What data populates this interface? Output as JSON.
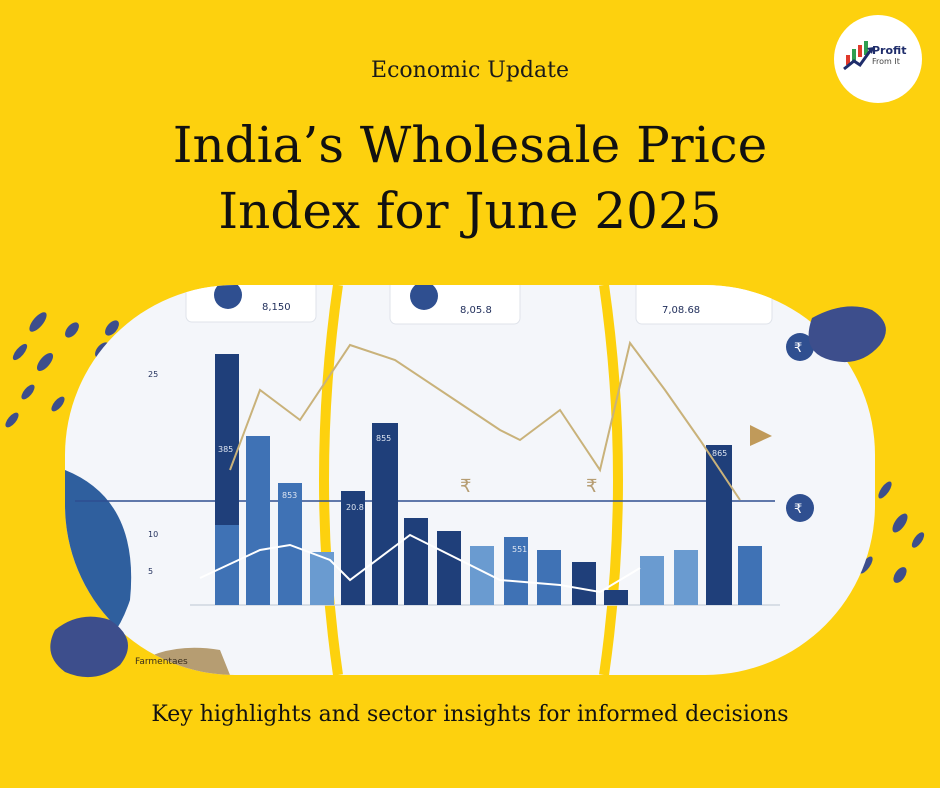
{
  "kicker": "Economic Update",
  "title": {
    "line1": "India’s Wholesale Price",
    "line2": "Index for June 2025"
  },
  "subtitle": "Key highlights and sector insights for informed decisions",
  "brand": {
    "line1": "Profit",
    "line2": "From It"
  },
  "cards": [
    {
      "value": "8,150"
    },
    {
      "value": "8,05.8"
    },
    {
      "value": "7,08.68"
    }
  ],
  "y_ticks": [
    "25",
    "10",
    "5"
  ],
  "bar_labels": [
    "385",
    "20.8",
    "855",
    "853",
    "551",
    "865"
  ],
  "rupee_symbol": "₹",
  "corner_label": "Farmentaes",
  "colors": {
    "background": "#fdd10e",
    "navy": "#1f3f7a",
    "blue": "#4a86c5",
    "navy_blob": "#3d4e8c",
    "gold_line": "#c9b27a"
  }
}
